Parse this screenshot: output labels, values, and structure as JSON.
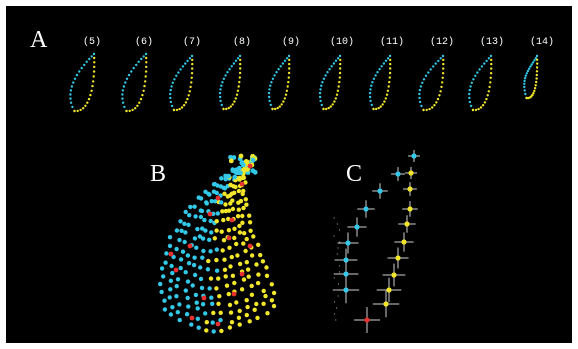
{
  "panels": {
    "a": "A",
    "b": "B",
    "c": "C"
  },
  "frame_labels": [
    "(5)",
    "(6)",
    "(7)",
    "(8)",
    "(9)",
    "(10)",
    "(11)",
    "(12)",
    "(13)",
    "(14)"
  ],
  "colors": {
    "background": "#000000",
    "left_contour": "#33c8e8",
    "right_contour": "#f2e62a",
    "marker": "#e83030",
    "crosshair": "#cfcfcf"
  }
}
